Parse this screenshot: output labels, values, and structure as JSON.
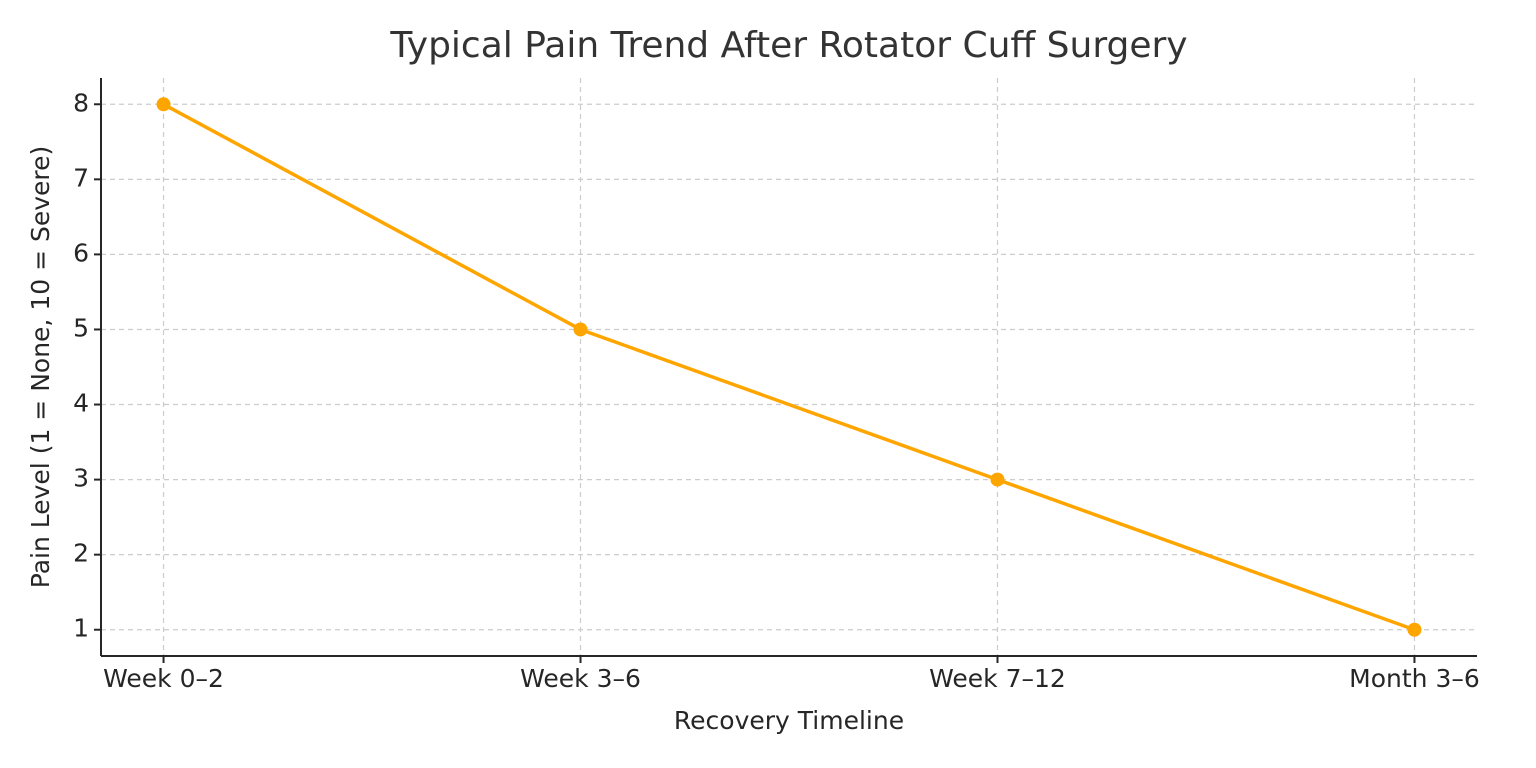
{
  "chart_data": {
    "type": "line",
    "title": "Typical Pain Trend After Rotator Cuff Surgery",
    "x_label": "Recovery Timeline",
    "y_label": "Pain Level (1 = None, 10 = Severe)",
    "categories": [
      "Week 0–2",
      "Week 3–6",
      "Week 7–12",
      "Month 3–6"
    ],
    "series": [
      {
        "name": "Pain Level",
        "color": "#ffa500",
        "values": [
          8,
          5,
          3,
          1
        ]
      }
    ],
    "ylim": [
      0.65,
      8.35
    ],
    "yticks": [
      1,
      2,
      3,
      4,
      5,
      6,
      7,
      8
    ],
    "grid": true
  }
}
